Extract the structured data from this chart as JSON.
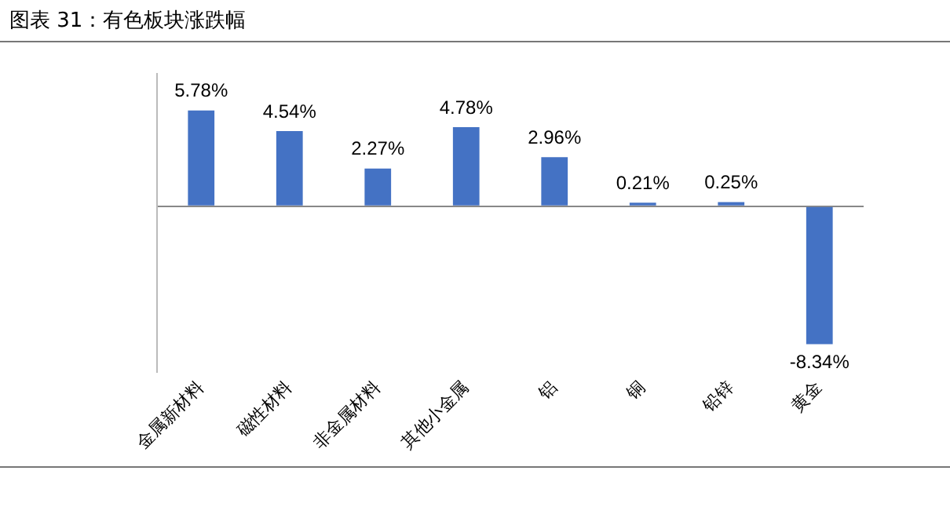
{
  "chart_data": {
    "type": "bar",
    "title": "图表 31：有色板块涨跌幅",
    "categories": [
      "金属新材料",
      "磁性材料",
      "非金属材料",
      "其他小金属",
      "铝",
      "铜",
      "铅锌",
      "黄金"
    ],
    "series": [
      {
        "color": "#4472c4",
        "values": [
          5.78,
          4.54,
          2.27,
          4.78,
          2.96,
          0.21,
          0.25,
          -8.34
        ],
        "value_labels": [
          "5.78%",
          "4.54%",
          "2.27%",
          "4.78%",
          "2.96%",
          "0.21%",
          "0.25%",
          "-8.34%"
        ]
      }
    ],
    "grid": false,
    "legend": false,
    "tick_labels": "x"
  }
}
